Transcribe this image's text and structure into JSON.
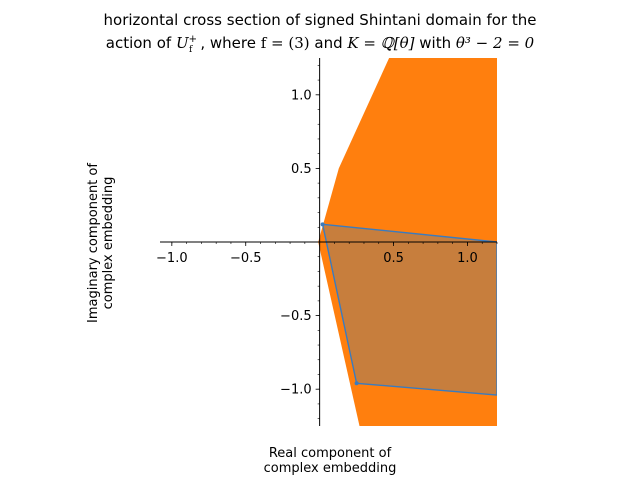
{
  "title": {
    "line1": "horizontal cross section of signed Shintani domain for the",
    "line2_prefix": "action of ",
    "line2_U": "U",
    "line2_U_sup": "+",
    "line2_U_sub": "f",
    "line2_where": ", where ",
    "line2_f_eq": "f = (3)",
    "line2_and": " and ",
    "line2_K": "K = ℚ[θ]",
    "line2_with": " with ",
    "line2_poly": "θ³ − 2 = 0"
  },
  "axes": {
    "xlabel_line1": "Real component of",
    "xlabel_line2": "complex embedding",
    "ylabel_line1": "Imaginary component of",
    "ylabel_line2": "complex embedding"
  },
  "colors": {
    "orange": "#ff7f0e",
    "blue": "#1f77b4",
    "overlap": "#c77e3d",
    "edge": "#3a7bbf"
  },
  "chart_data": {
    "type": "area",
    "xlim": [
      -1.08,
      1.2
    ],
    "ylim": [
      -1.25,
      1.25
    ],
    "xticks": [
      -1.0,
      -0.5,
      0.5,
      1.0
    ],
    "xtick_labels": [
      "−1.0",
      "−0.5",
      "0.5",
      "1.0"
    ],
    "yticks": [
      1.0,
      0.5,
      -0.5,
      -1.0
    ],
    "ytick_labels": [
      "1.0",
      "0.5",
      "−0.5",
      "−1.0"
    ],
    "grid": false,
    "legend": "none",
    "regions": [
      {
        "color": "orange",
        "points": [
          [
            0.47,
            1.25
          ],
          [
            1.2,
            1.25
          ],
          [
            1.2,
            -1.25
          ],
          [
            0.27,
            -1.25
          ],
          [
            -0.01,
            0.0
          ],
          [
            0.13,
            0.5
          ]
        ]
      },
      {
        "color": "blue",
        "points": [
          [
            0.02,
            0.12
          ],
          [
            1.2,
            0.0
          ],
          [
            1.2,
            -1.04
          ],
          [
            0.25,
            -0.96
          ]
        ]
      }
    ],
    "vertices": [
      [
        0.02,
        0.12
      ],
      [
        0.25,
        -0.96
      ]
    ]
  }
}
